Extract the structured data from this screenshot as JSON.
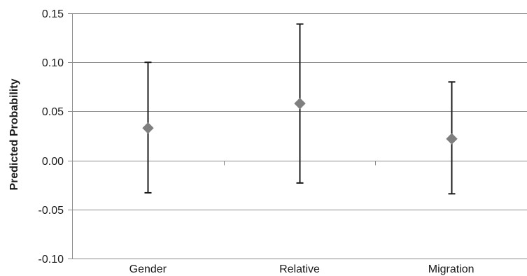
{
  "chart_data": {
    "type": "scatter",
    "title": "",
    "xlabel": "",
    "ylabel": "Predicted Probability",
    "categories": [
      "Gender",
      "Relative",
      "Migration"
    ],
    "ylim": [
      -0.1,
      0.15
    ],
    "yticks": [
      0.15,
      0.1,
      0.05,
      0.0,
      -0.05,
      -0.1
    ],
    "ytick_labels": [
      "0.15",
      "0.10",
      "0.05",
      "0.00",
      "-0.05",
      "-0.10"
    ],
    "grid": true,
    "series": [
      {
        "point_estimates": [
          0.033,
          0.058,
          0.022
        ],
        "error_upper": [
          0.1,
          0.139,
          0.08
        ],
        "error_lower": [
          -0.033,
          -0.023,
          -0.034
        ]
      }
    ],
    "colors": {
      "marker": "#7f7f7f",
      "error_bar": "#1a1a1a",
      "grid": "#8c8c8c",
      "axis": "#8c8c8c"
    }
  }
}
